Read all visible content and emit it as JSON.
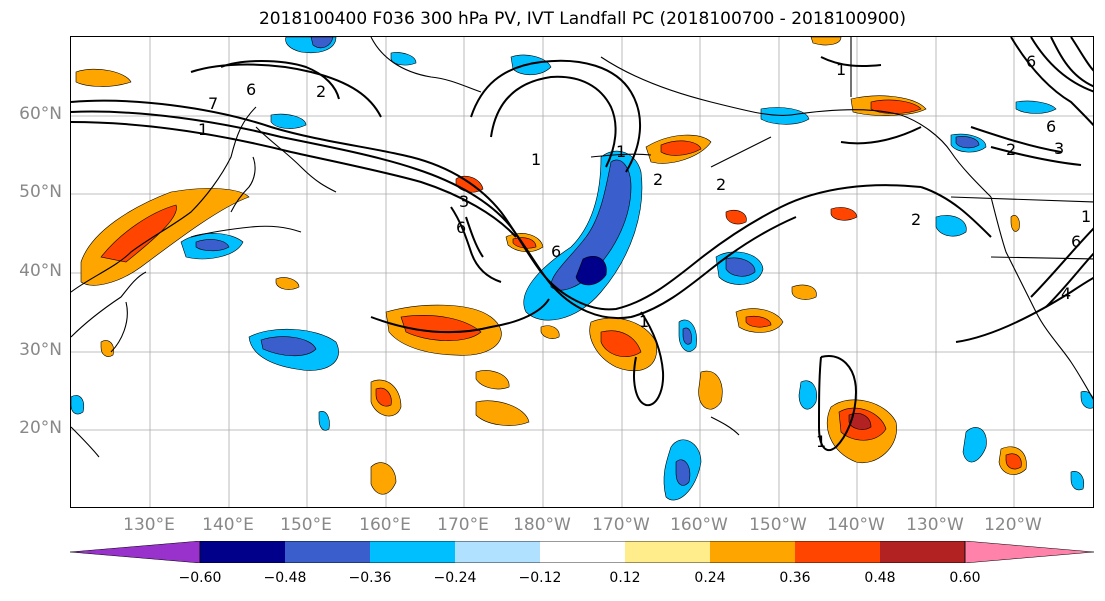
{
  "title": "2018100400 F036 300 hPa PV, IVT Landfall PC (2018100700 - 2018100900)",
  "map": {
    "lat_labels": [
      "60°N",
      "50°N",
      "40°N",
      "30°N",
      "20°N"
    ],
    "lon_labels": [
      "130°E",
      "140°E",
      "150°E",
      "160°E",
      "170°E",
      "180°W",
      "170°W",
      "160°W",
      "150°W",
      "140°W",
      "130°W",
      "120°W"
    ],
    "contour_labels": [
      "7",
      "6",
      "1",
      "2",
      "1",
      "1",
      "2",
      "3",
      "6",
      "6",
      "1",
      "1",
      "2",
      "2",
      "3",
      "6",
      "1",
      "6",
      "4",
      "2",
      "6",
      "1"
    ]
  },
  "colorbar": {
    "colors": [
      "#9932CC",
      "#00008B",
      "#3A5FCD",
      "#00BFFF",
      "#B0E2FF",
      "#FFFFFF",
      "#FFEC8B",
      "#FFA500",
      "#FF4500",
      "#B22222",
      "#FF82AB"
    ],
    "labels": [
      "−0.60",
      "−0.48",
      "−0.36",
      "−0.24",
      "−0.12",
      "0.12",
      "0.24",
      "0.36",
      "0.48",
      "0.60"
    ]
  }
}
